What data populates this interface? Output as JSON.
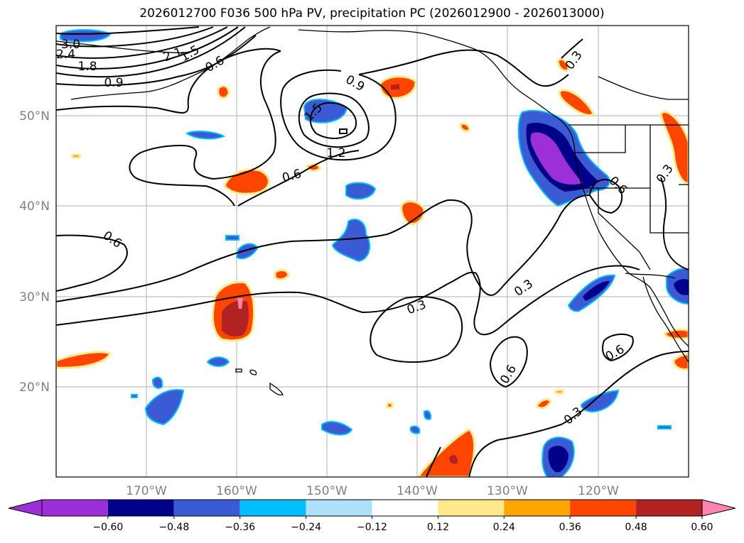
{
  "figure": {
    "title": "2026012700 F036 500 hPa PV, precipitation PC (2026012900 - 2026013000)"
  },
  "axes": {
    "lon_ticks": [
      "170°W",
      "160°W",
      "150°W",
      "140°W",
      "130°W",
      "120°W"
    ],
    "lat_ticks": [
      "50°N",
      "40°N",
      "30°N",
      "20°N"
    ],
    "lon_range": [
      -180,
      -110
    ],
    "lat_range": [
      10,
      60
    ],
    "gridlines": true
  },
  "contour_labels": [
    "2.4",
    "3.0",
    "1.8",
    "2.1",
    "1.5",
    "0.9",
    "0.6",
    "1.5",
    "0.9",
    "1.2",
    "0.6",
    "0.6",
    "0.3",
    "0.3",
    "0.6",
    "0.3",
    "0.6",
    "0.3",
    "0.3",
    "0.6"
  ],
  "colorbar": {
    "tick_labels": [
      "−0.60",
      "−0.48",
      "−0.36",
      "−0.24",
      "−0.12",
      "0.12",
      "0.24",
      "0.36",
      "0.48",
      "0.60"
    ],
    "bin_colors": [
      "#9b30d9",
      "#00008b",
      "#3b5bd4",
      "#00bfff",
      "#afe0fa",
      "#ffffff",
      "#ffe98a",
      "#ffa500",
      "#ff4500",
      "#b22222",
      "#ff85b0"
    ],
    "extend": "both"
  },
  "colors": {
    "contour": "#000000",
    "gridline": "#b0b0b0",
    "coast": "#000000"
  }
}
